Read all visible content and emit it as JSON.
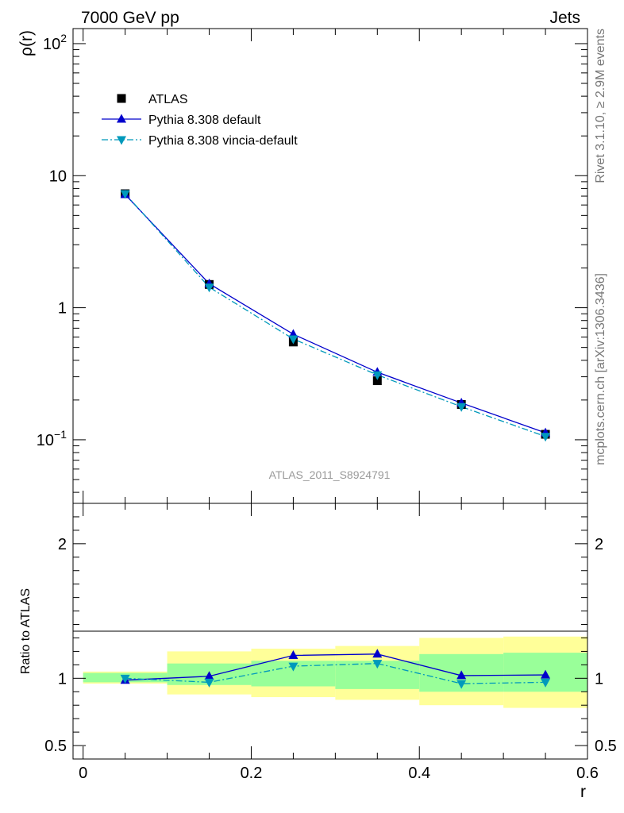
{
  "header": {
    "left": "7000 GeV pp",
    "right": "Jets"
  },
  "side_text": {
    "upper": "Rivet 3.1.10, ≥ 2.9M events",
    "lower": "mcplots.cern.ch [arXiv:1306.3436]"
  },
  "analysis_label": "ATLAS_2011_S8924791",
  "colors": {
    "data": "#000000",
    "default": "#0000cc",
    "vincia": "#0099bb",
    "band_inner": "#99ff99",
    "band_outer": "#ffff99",
    "side_text": "#777777"
  },
  "chart_data": [
    {
      "type": "line",
      "panel": "main",
      "ylabel": "ρ(r)",
      "yscale": "log",
      "xlim": [
        -0.012,
        0.6
      ],
      "ylim": [
        0.033,
        130
      ],
      "yticks": [
        {
          "value": 100,
          "label": "10",
          "sup": "2"
        },
        {
          "value": 10,
          "label": "10",
          "sup": ""
        },
        {
          "value": 1,
          "label": "1",
          "sup": ""
        },
        {
          "value": 0.1,
          "label": "10",
          "sup": "−1"
        }
      ],
      "legend": [
        {
          "name": "ATLAS",
          "marker": "square",
          "color": "#000000"
        },
        {
          "name": "Pythia 8.308 default",
          "marker": "triangle-up",
          "color": "#0000cc"
        },
        {
          "name": "Pythia 8.308 vincia-default",
          "marker": "triangle-down",
          "color": "#0099bb"
        }
      ],
      "x": [
        0.05,
        0.15,
        0.25,
        0.35,
        0.45,
        0.55
      ],
      "series": [
        {
          "name": "ATLAS",
          "values": [
            7.3,
            1.5,
            0.55,
            0.28,
            0.185,
            0.11
          ]
        },
        {
          "name": "Pythia 8.308 default",
          "values": [
            7.2,
            1.52,
            0.63,
            0.325,
            0.19,
            0.113
          ]
        },
        {
          "name": "Pythia 8.308 vincia-default",
          "values": [
            7.3,
            1.43,
            0.58,
            0.31,
            0.178,
            0.106
          ]
        }
      ]
    },
    {
      "type": "line",
      "panel": "ratio",
      "xlabel": "r",
      "ylabel": "Ratio to ATLAS",
      "xlim": [
        -0.012,
        0.6
      ],
      "ylim": [
        0.4,
        2.3
      ],
      "xticks": [
        {
          "value": 0,
          "label": "0"
        },
        {
          "value": 0.2,
          "label": "0.2"
        },
        {
          "value": 0.4,
          "label": "0.4"
        },
        {
          "value": 0.6,
          "label": "0.6"
        }
      ],
      "yticks": [
        {
          "value": 2,
          "label": "2"
        },
        {
          "value": 1,
          "label": "1"
        },
        {
          "value": 0.5,
          "label": "0.5"
        }
      ],
      "bins": [
        [
          0.0,
          0.1
        ],
        [
          0.1,
          0.2
        ],
        [
          0.2,
          0.3
        ],
        [
          0.3,
          0.4
        ],
        [
          0.4,
          0.5
        ],
        [
          0.5,
          0.6
        ]
      ],
      "band_outer": [
        [
          0.96,
          1.05
        ],
        [
          0.88,
          1.2
        ],
        [
          0.86,
          1.22
        ],
        [
          0.84,
          1.24
        ],
        [
          0.8,
          1.3
        ],
        [
          0.78,
          1.31
        ]
      ],
      "band_inner": [
        [
          0.97,
          1.04
        ],
        [
          0.95,
          1.11
        ],
        [
          0.94,
          1.13
        ],
        [
          0.92,
          1.13
        ],
        [
          0.9,
          1.18
        ],
        [
          0.9,
          1.19
        ]
      ],
      "x": [
        0.05,
        0.15,
        0.25,
        0.35,
        0.45,
        0.55
      ],
      "series": [
        {
          "name": "Pythia 8.308 default",
          "values": [
            0.986,
            1.015,
            1.17,
            1.18,
            1.02,
            1.025
          ]
        },
        {
          "name": "Pythia 8.308 vincia-default",
          "values": [
            1.0,
            0.97,
            1.09,
            1.11,
            0.96,
            0.97
          ]
        }
      ]
    }
  ]
}
